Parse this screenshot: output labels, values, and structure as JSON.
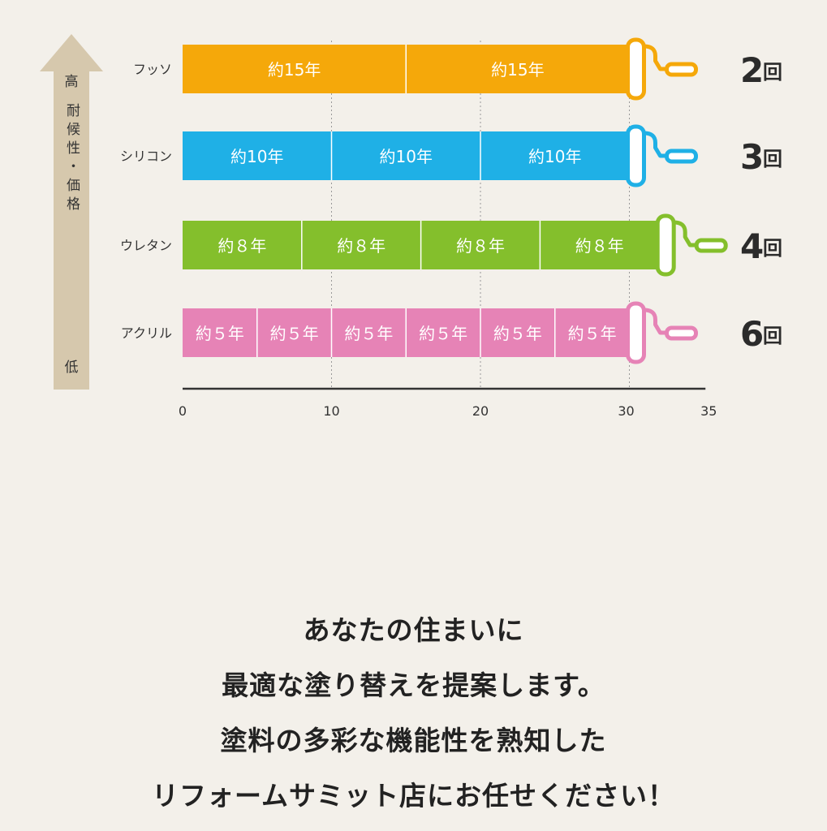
{
  "chart_data": {
    "type": "bar",
    "orientation": "horizontal",
    "stacked": true,
    "axis_label_vertical": "耐候性・価格",
    "axis_high": "高",
    "axis_low": "低",
    "xlim": [
      0,
      35
    ],
    "x_ticks": [
      0,
      10,
      20,
      30,
      35
    ],
    "grid_x": [
      10,
      20,
      30
    ],
    "categories": [
      {
        "name": "フッソ",
        "segment_years": 15,
        "segments": 2,
        "segment_label": "約15年",
        "count_number": "2",
        "count_unit": "回",
        "color": "#f5a80a"
      },
      {
        "name": "シリコン",
        "segment_years": 10,
        "segments": 3,
        "segment_label": "約10年",
        "count_number": "3",
        "count_unit": "回",
        "color": "#1fb0e6"
      },
      {
        "name": "ウレタン",
        "segment_years": 8,
        "segments": 4,
        "segment_label": "約８年",
        "count_number": "4",
        "count_unit": "回",
        "color": "#84bf2c"
      },
      {
        "name": "アクリル",
        "segment_years": 5,
        "segments": 6,
        "segment_label": "約５年",
        "count_number": "6",
        "count_unit": "回",
        "color": "#e683b6"
      }
    ]
  },
  "message": {
    "lines": [
      "あなたの住まいに",
      "最適な塗り替えを提案します。",
      "塗料の多彩な機能性を熟知した",
      "リフォームサミット店にお任せください！"
    ]
  }
}
